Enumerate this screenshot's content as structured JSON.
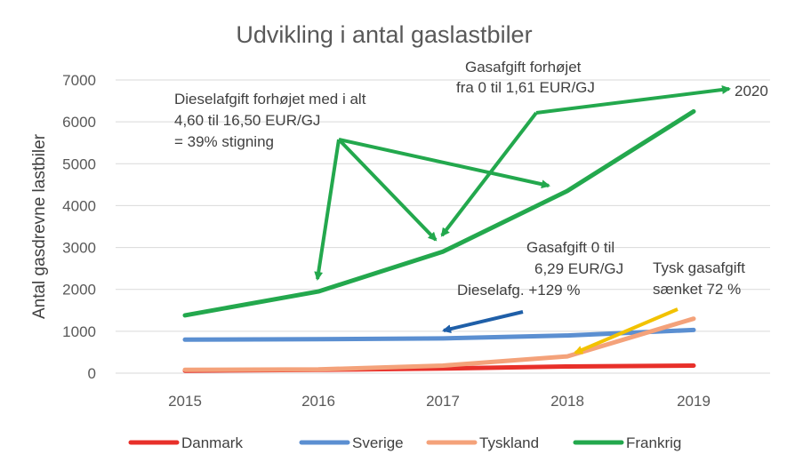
{
  "chart_data": {
    "type": "line",
    "title": "Udvikling i antal gaslastbiler",
    "xlabel": "",
    "ylabel": "Antal gasdrevne lastbiler",
    "x": [
      "2015",
      "2016",
      "2017",
      "2018",
      "2019"
    ],
    "ylim": [
      0,
      7000
    ],
    "yticks": [
      "0",
      "1000",
      "2000",
      "3000",
      "4000",
      "5000",
      "6000",
      "7000"
    ],
    "grid": true,
    "legend_position": "bottom",
    "series": [
      {
        "name": "Danmark",
        "color": "#e8302a",
        "values": [
          60,
          80,
          110,
          160,
          180
        ]
      },
      {
        "name": "Sverige",
        "color": "#5b8fd1",
        "values": [
          800,
          810,
          830,
          900,
          1030
        ]
      },
      {
        "name": "Tyskland",
        "color": "#f4a27a",
        "values": [
          80,
          90,
          180,
          400,
          1300
        ]
      },
      {
        "name": "Frankrig",
        "color": "#23a84d",
        "values": [
          1380,
          1950,
          2900,
          4350,
          6250
        ]
      }
    ],
    "annotations": [
      {
        "lines": [
          "Dieselafgift forhøjet med i alt",
          "4,60 til 16,50 EUR/GJ",
          "= 39% stigning"
        ],
        "color": "#23a84d"
      },
      {
        "lines": [
          "Gasafgift forhøjet",
          "fra 0 til 1,61 EUR/GJ"
        ],
        "color": "#23a84d"
      },
      {
        "lines": [
          "2020"
        ],
        "color": "#23a84d"
      },
      {
        "lines": [
          "Gasafgift 0 til",
          "6,29 EUR/GJ",
          "Dieselafg. +129 %"
        ],
        "color": "#1f5fa8"
      },
      {
        "lines": [
          "Tysk gasafgift",
          "sænket 72 %"
        ],
        "color": "#f2c200"
      }
    ]
  }
}
